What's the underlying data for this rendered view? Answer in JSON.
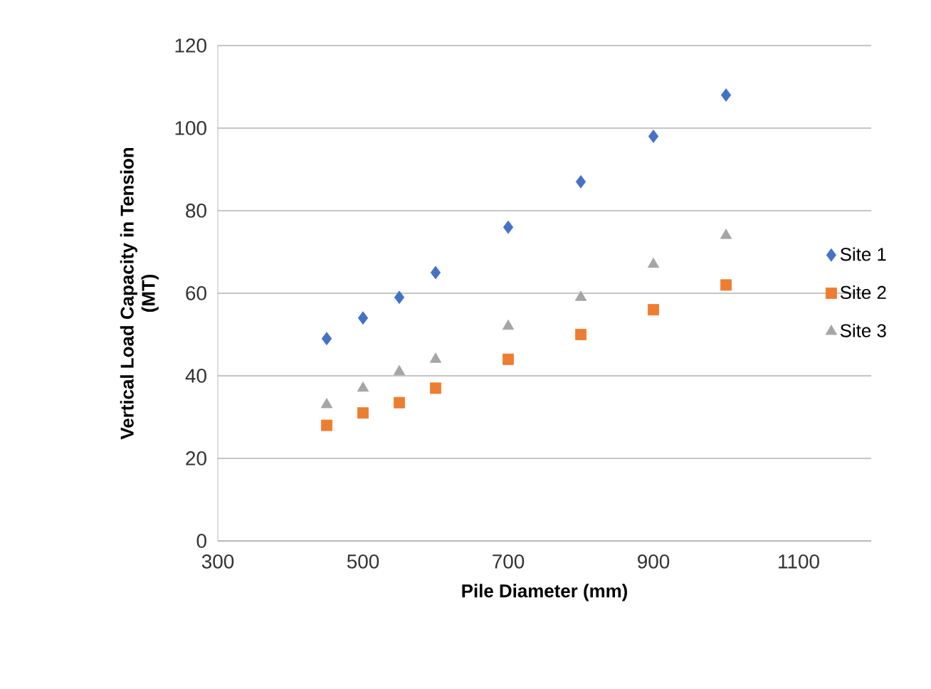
{
  "chart_data": {
    "type": "scatter",
    "xlabel": "Pile Diameter (mm)",
    "ylabel": "Vertical Load Capacity in Tension\n(MT)",
    "xlim": [
      300,
      1200
    ],
    "xticks": [
      300,
      500,
      700,
      900,
      1100
    ],
    "ylim": [
      0,
      120
    ],
    "yticks": [
      0,
      20,
      40,
      60,
      80,
      100,
      120
    ],
    "grid": "y",
    "legend": "right",
    "x": [
      450,
      500,
      550,
      600,
      700,
      800,
      900,
      1000
    ],
    "series": [
      {
        "name": "Site 1",
        "color": "#4472c4",
        "marker": "diamond",
        "values": [
          49,
          54,
          59,
          65,
          76,
          87,
          98,
          108
        ]
      },
      {
        "name": "Site 2",
        "color": "#ed7d31",
        "marker": "square",
        "values": [
          28,
          31,
          33.5,
          37,
          44,
          50,
          56,
          62
        ]
      },
      {
        "name": "Site 3",
        "color": "#a5a5a5",
        "marker": "triangle",
        "values": [
          33,
          37,
          41,
          44,
          52,
          59,
          67,
          74
        ]
      }
    ]
  }
}
